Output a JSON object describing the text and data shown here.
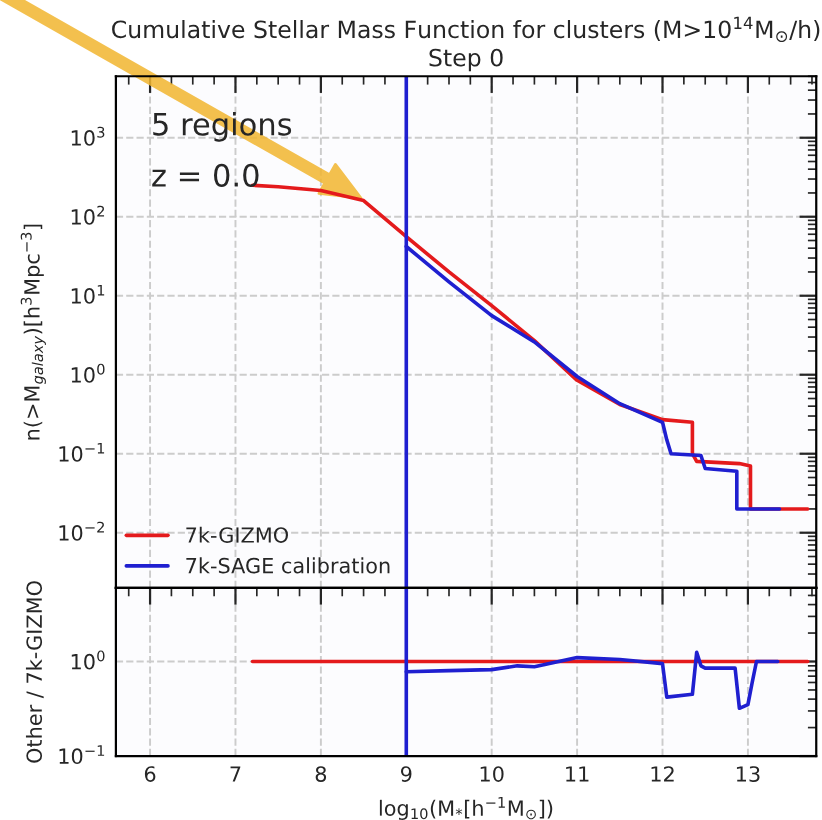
{
  "chart_data": [
    {
      "type": "line",
      "title": "Cumulative Stellar Mass Function for clusters (M>10$^{14}$M$_{⊙}$/h)",
      "subtitle": "Step 0",
      "ylabel": "n(>M$_{galaxy}$)[h$^{3}$Mpc$^{−3}$]",
      "annotations": [
        "5 regions",
        "z = 0.0"
      ],
      "series": [
        {
          "name": "7k-GIZMO",
          "color": "#e41a1c",
          "x": [
            7.2,
            7.5,
            8.0,
            8.5,
            9.0,
            9.5,
            10.0,
            10.5,
            11.0,
            11.5,
            12.0,
            12.35,
            12.35,
            12.4,
            12.9,
            13.03,
            13.03,
            13.7
          ],
          "values": [
            250,
            240,
            215,
            160,
            56,
            20,
            7.5,
            2.7,
            0.85,
            0.42,
            0.27,
            0.25,
            0.1,
            0.08,
            0.075,
            0.07,
            0.02,
            0.02
          ]
        },
        {
          "name": "7k-SAGE calibration",
          "color": "#1f1fd0",
          "x": [
            9.0,
            9.5,
            10.0,
            10.5,
            11.0,
            11.5,
            12.0,
            12.05,
            12.1,
            12.45,
            12.5,
            12.87,
            12.87,
            13.37
          ],
          "values": [
            42,
            15,
            5.6,
            2.6,
            0.95,
            0.43,
            0.25,
            0.15,
            0.1,
            0.095,
            0.065,
            0.06,
            0.02,
            0.02
          ]
        }
      ],
      "log": "y",
      "xlim": [
        5.6,
        13.8
      ],
      "xticks": [
        6,
        7,
        8,
        9,
        10,
        11,
        12,
        13
      ],
      "ylim": [
        0.002,
        6000
      ],
      "yticks": [
        {
          "value": 0.01,
          "label": "10$^{−2}$"
        },
        {
          "value": 0.1,
          "label": "10$^{−1}$"
        },
        {
          "value": 1,
          "label": "10$^{0}$"
        },
        {
          "value": 10,
          "label": "10$^{1}$"
        },
        {
          "value": 100,
          "label": "10$^{2}$"
        },
        {
          "value": 1000,
          "label": "10$^{3}$"
        }
      ],
      "ref_lines": [
        {
          "axis": "x",
          "value": 9,
          "color": "#1f1fd0",
          "line_style": "solid"
        }
      ],
      "grid": true,
      "legend": "bottom left",
      "tick_labels": "y",
      "line_style": "solid"
    },
    {
      "type": "line",
      "xlabel": "log$_{10}$(M$_{*}$[h$^{−1}$M$_{⊙}$])",
      "ylabel": "Other / 7k-GIZMO",
      "series": [
        {
          "color": "#e41a1c",
          "x": [
            7.2,
            13.7
          ],
          "values": [
            1,
            1
          ]
        },
        {
          "color": "#1f1fd0",
          "x": [
            9.0,
            9.5,
            10.0,
            10.3,
            10.5,
            11.0,
            11.5,
            12.0,
            12.05,
            12.35,
            12.4,
            12.45,
            12.5,
            12.85,
            12.9,
            13.0,
            13.05,
            13.1,
            13.35
          ],
          "values": [
            0.78,
            0.8,
            0.82,
            0.9,
            0.88,
            1.1,
            1.05,
            0.95,
            0.42,
            0.45,
            1.25,
            0.9,
            0.85,
            0.85,
            0.32,
            0.35,
            0.6,
            1.0,
            1.0
          ]
        }
      ],
      "log": "y",
      "xlim": [
        5.6,
        13.8
      ],
      "xticks": [
        6,
        7,
        8,
        9,
        10,
        11,
        12,
        13
      ],
      "ylim": [
        0.1,
        6
      ],
      "yticks": [
        {
          "value": 0.1,
          "label": "10$^{−1}$"
        },
        {
          "value": 1,
          "label": "10$^{0}$"
        }
      ],
      "ref_lines": [
        {
          "axis": "x",
          "value": 9,
          "color": "#1f1fd0",
          "line_style": "solid"
        }
      ],
      "grid": true,
      "line_style": "solid"
    }
  ]
}
